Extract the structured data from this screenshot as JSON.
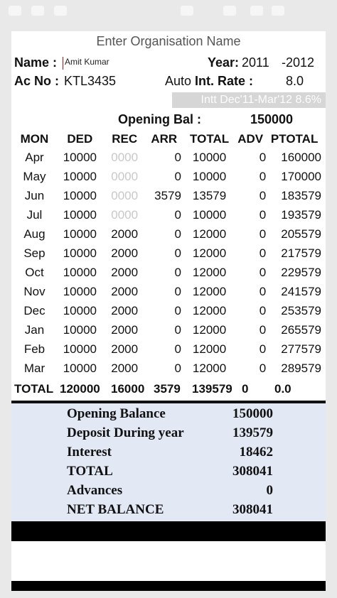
{
  "header": {
    "org_placeholder": "Enter Organisation Name",
    "name_label": "Name :",
    "name_value": "Amit Kumar",
    "year_label": "Year:",
    "year_from": "2011",
    "year_to": "-2012",
    "ac_label": "Ac No :",
    "ac_value": "KTL3435",
    "auto_label": "Auto",
    "rate_label": "Int. Rate :",
    "rate_value": "8.0",
    "intt_info": "Intt Dec'11-Mar'12 8.6%",
    "opening_label": "Opening Bal :",
    "opening_value": "150000"
  },
  "table": {
    "columns": [
      "MON",
      "DED",
      "REC",
      "ARR",
      "TOTAL",
      "ADV",
      "PTOTAL"
    ],
    "rows": [
      {
        "mon": "Apr",
        "ded": "10000",
        "rec": "0000",
        "arr": "0",
        "total": "10000",
        "adv": "0",
        "ptotal": "160000"
      },
      {
        "mon": "May",
        "ded": "10000",
        "rec": "0000",
        "arr": "0",
        "total": "10000",
        "adv": "0",
        "ptotal": "170000"
      },
      {
        "mon": "Jun",
        "ded": "10000",
        "rec": "0000",
        "arr": "3579",
        "total": "13579",
        "adv": "0",
        "ptotal": "183579"
      },
      {
        "mon": "Jul",
        "ded": "10000",
        "rec": "0000",
        "arr": "0",
        "total": "10000",
        "adv": "0",
        "ptotal": "193579"
      },
      {
        "mon": "Aug",
        "ded": "10000",
        "rec": "2000",
        "arr": "0",
        "total": "12000",
        "adv": "0",
        "ptotal": "205579"
      },
      {
        "mon": "Sep",
        "ded": "10000",
        "rec": "2000",
        "arr": "0",
        "total": "12000",
        "adv": "0",
        "ptotal": "217579"
      },
      {
        "mon": "Oct",
        "ded": "10000",
        "rec": "2000",
        "arr": "0",
        "total": "12000",
        "adv": "0",
        "ptotal": "229579"
      },
      {
        "mon": "Nov",
        "ded": "10000",
        "rec": "2000",
        "arr": "0",
        "total": "12000",
        "adv": "0",
        "ptotal": "241579"
      },
      {
        "mon": "Dec",
        "ded": "10000",
        "rec": "2000",
        "arr": "0",
        "total": "12000",
        "adv": "0",
        "ptotal": "253579"
      },
      {
        "mon": "Jan",
        "ded": "10000",
        "rec": "2000",
        "arr": "0",
        "total": "12000",
        "adv": "0",
        "ptotal": "265579"
      },
      {
        "mon": "Feb",
        "ded": "10000",
        "rec": "2000",
        "arr": "0",
        "total": "12000",
        "adv": "0",
        "ptotal": "277579"
      },
      {
        "mon": "Mar",
        "ded": "10000",
        "rec": "2000",
        "arr": "0",
        "total": "12000",
        "adv": "0",
        "ptotal": "289579"
      }
    ],
    "totals": {
      "label": "TOTAL",
      "ded": "120000",
      "rec": "16000",
      "arr": "3579",
      "total": "139579",
      "adv": "0",
      "ptotal": "0.0"
    }
  },
  "summary": {
    "opening_balance_label": "Opening Balance",
    "opening_balance_value": "150000",
    "deposit_label": "Deposit During year",
    "deposit_value": "139579",
    "interest_label": "Interest",
    "interest_value": "18462",
    "total_label": "TOTAL",
    "total_value": "308041",
    "advances_label": "Advances",
    "advances_value": "0",
    "net_label": "NET BALANCE",
    "net_value": "308041"
  },
  "colors": {
    "intt_bar": "#d6d6d6",
    "summary_bg": "#e3e8f5",
    "faint_text": "#c8c8c8",
    "cursor": "#8a1c1c"
  }
}
